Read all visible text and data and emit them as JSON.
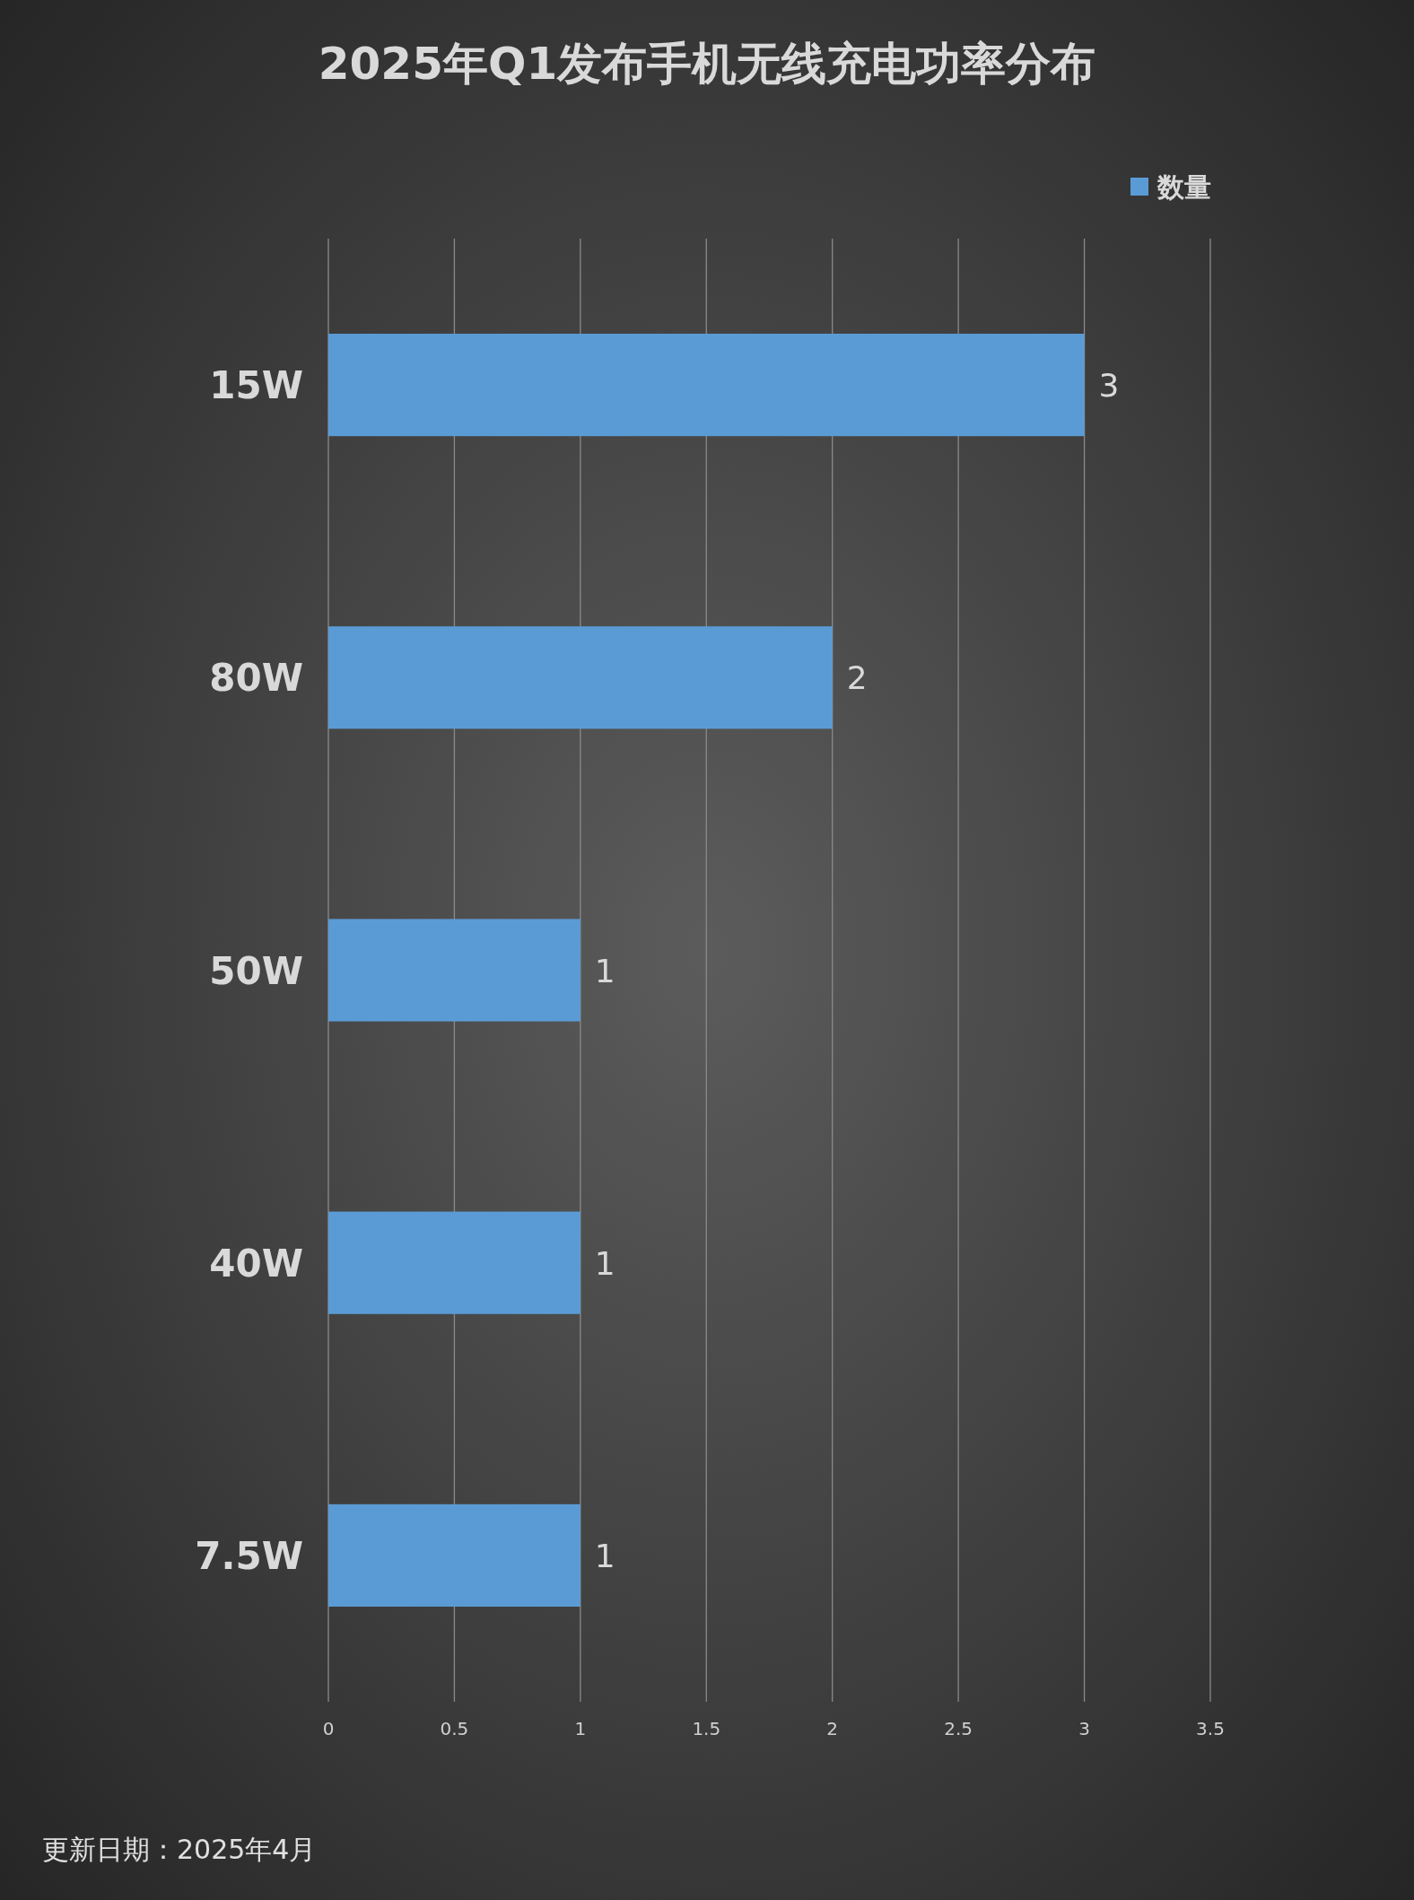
{
  "chart_data": {
    "type": "bar",
    "orientation": "horizontal",
    "title": "2025年Q1发布手机无线充电功率分布",
    "categories": [
      "15W",
      "80W",
      "50W",
      "40W",
      "7.5W"
    ],
    "series": [
      {
        "name": "数量",
        "color": "#5b9bd5",
        "values": [
          3,
          2,
          1,
          1,
          1
        ]
      }
    ],
    "xlim": [
      0,
      3.5
    ],
    "xticks": [
      0,
      0.5,
      1,
      1.5,
      2,
      2.5,
      3,
      3.5
    ],
    "grid": "x",
    "legend": "top right",
    "data_labels": true,
    "annotations": [
      "更新日期：2025年4月"
    ]
  }
}
